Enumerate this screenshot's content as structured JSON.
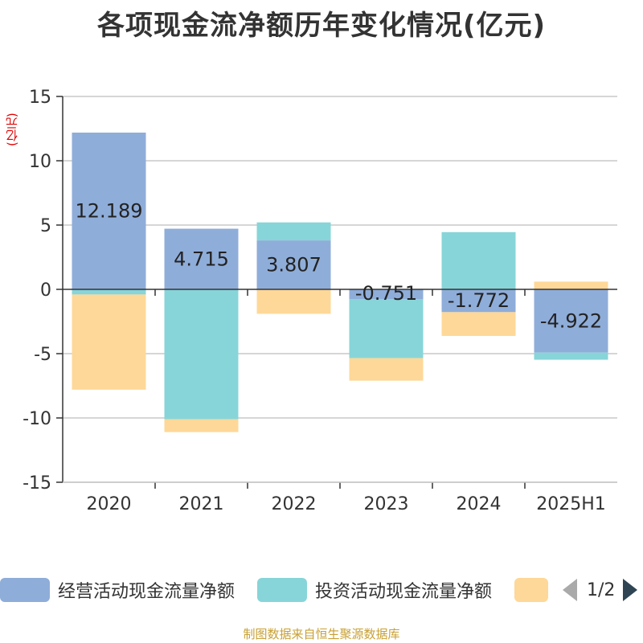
{
  "chart_data": {
    "type": "bar",
    "stacked": true,
    "title": "各项现金流净额历年变化情况(亿元)",
    "unit_label": "(亿元)",
    "categories": [
      "2020",
      "2021",
      "2022",
      "2023",
      "2024",
      "2025H1"
    ],
    "ylim": [
      -15,
      15
    ],
    "yticks": [
      15,
      10,
      5,
      0,
      -5,
      -10,
      -15
    ],
    "grid": true,
    "series": [
      {
        "name": "经营活动现金流量净额",
        "color": "#8fadd9",
        "values": [
          12.189,
          4.715,
          3.807,
          -0.751,
          -1.772,
          -4.922
        ],
        "show_labels": true
      },
      {
        "name": "投资活动现金流量净额",
        "color": "#87d5d8",
        "values": [
          -0.4,
          -10.1,
          1.4,
          -4.6,
          4.45,
          -0.55
        ],
        "show_labels": false
      },
      {
        "name": "",
        "color": "#fed898",
        "values": [
          -7.4,
          -1.0,
          -1.9,
          -1.75,
          -1.85,
          0.6
        ],
        "show_labels": false
      }
    ],
    "data_labels": [
      "12.189",
      "4.715",
      "3.807",
      "-0.751",
      "-1.772",
      "-4.922"
    ]
  },
  "legend": {
    "items": [
      {
        "label": "经营活动现金流量净额",
        "color": "#8fadd9"
      },
      {
        "label": "投资活动现金流量净额",
        "color": "#87d5d8"
      },
      {
        "label": "",
        "color": "#fed898"
      }
    ],
    "page": "1/2"
  },
  "source": "制图数据来自恒生聚源数据库"
}
